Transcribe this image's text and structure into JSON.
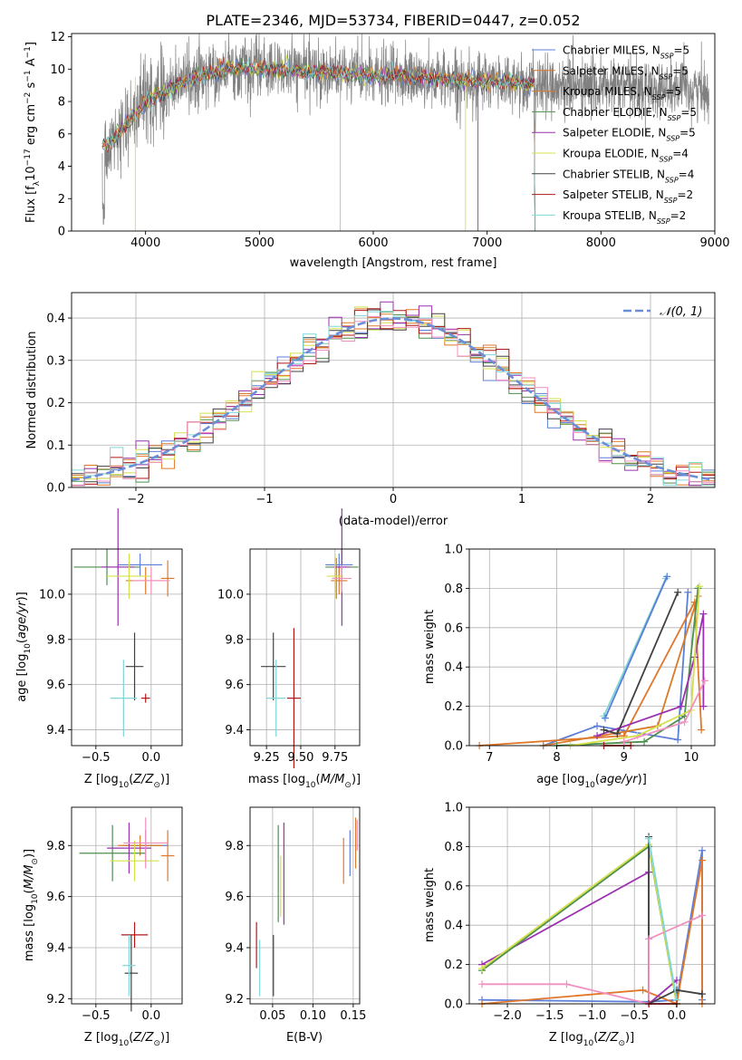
{
  "page_title": "PLATE=2346, MJD=53734, FIBERID=0447, z=0.052",
  "legend_models": [
    {
      "label": "Chabrier MILES, N",
      "sub": "SSP",
      "n": "5",
      "color": "#5b7fd8"
    },
    {
      "label": "Salpeter MILES, N",
      "sub": "SSP",
      "n": "5",
      "color": "#e0772a"
    },
    {
      "label": "Kroupa MILES, N",
      "sub": "SSP",
      "n": "5",
      "color": "#d97b28"
    },
    {
      "label": "Chabrier ELODIE, N",
      "sub": "SSP",
      "n": "5",
      "color": "#4d8f4d"
    },
    {
      "label": "Salpeter ELODIE, N",
      "sub": "SSP",
      "n": "5",
      "color": "#9b30b0"
    },
    {
      "label": "Kroupa ELODIE, N",
      "sub": "SSP",
      "n": "4",
      "color": "#d4e04a"
    },
    {
      "label": "Chabrier STELIB, N",
      "sub": "SSP",
      "n": "4",
      "color": "#404040"
    },
    {
      "label": "Salpeter STELIB, N",
      "sub": "SSP",
      "n": "2",
      "color": "#b01818"
    },
    {
      "label": "Kroupa STELIB, N",
      "sub": "SSP",
      "n": "2",
      "color": "#7fd6d6"
    }
  ],
  "chart_data": [
    {
      "id": "spectrum",
      "type": "line",
      "title": "PLATE=2346, MJD=53734, FIBERID=0447, z=0.052",
      "xlabel": "wavelength [Angstrom, rest frame]",
      "ylabel": "Flux [f_λ 10^-17 erg cm^-2 s^-1 A^-1]",
      "xlim": [
        3350,
        9000
      ],
      "ylim": [
        0,
        12.2
      ],
      "xticks": [
        4000,
        5000,
        6000,
        7000,
        8000,
        9000
      ],
      "yticks": [
        0,
        2,
        4,
        6,
        8,
        10,
        12
      ],
      "continuum": [
        [
          3620,
          5.2
        ],
        [
          3750,
          6.0
        ],
        [
          3900,
          7.2
        ],
        [
          4000,
          8.0
        ],
        [
          4200,
          8.7
        ],
        [
          4400,
          9.4
        ],
        [
          4600,
          9.8
        ],
        [
          4800,
          10.1
        ],
        [
          5000,
          10.0
        ],
        [
          5300,
          9.9
        ],
        [
          5600,
          9.8
        ],
        [
          6000,
          9.6
        ],
        [
          6400,
          9.5
        ],
        [
          6800,
          9.3
        ],
        [
          7200,
          9.2
        ],
        [
          7420,
          9.1
        ]
      ],
      "data_range": [
        3620,
        8950
      ],
      "models_range": [
        3620,
        7420
      ],
      "grid": false,
      "legend": "right"
    },
    {
      "id": "residuals",
      "type": "histogram",
      "xlabel": "(data-model)/error",
      "ylabel": "Normed distribution",
      "xlim": [
        -2.5,
        2.5
      ],
      "ylim": [
        0,
        0.46
      ],
      "xticks": [
        -2,
        -1,
        0,
        1,
        2
      ],
      "yticks": [
        0.0,
        0.1,
        0.2,
        0.3,
        0.4
      ],
      "legend_label": "𝒩(0, 1)",
      "reference": "normal(0,1)",
      "bin_width": 0.1,
      "grid": true
    },
    {
      "id": "age_vs_Z",
      "type": "errorbar",
      "xlabel": "Z [log10(Z/Z⊙)]",
      "ylabel": "age [log10(age/yr)]",
      "xlim": [
        -0.72,
        0.28
      ],
      "ylim": [
        9.33,
        10.2
      ],
      "xticks": [
        -0.5,
        0.0
      ],
      "yticks": [
        9.4,
        9.6,
        9.8,
        10.0
      ],
      "points": [
        {
          "x": -0.1,
          "y": 10.13,
          "xe": 0.2,
          "ye": 0.05,
          "c": "#5b7fd8"
        },
        {
          "x": -0.05,
          "y": 10.06,
          "xe": 0.18,
          "ye": 0.06,
          "c": "#e0772a"
        },
        {
          "x": 0.15,
          "y": 10.07,
          "xe": 0.06,
          "ye": 0.08,
          "c": "#d97b28"
        },
        {
          "x": -0.4,
          "y": 10.12,
          "xe": 0.3,
          "ye": 0.08,
          "c": "#4d8f4d"
        },
        {
          "x": -0.3,
          "y": 10.12,
          "xe": 0.15,
          "ye": 0.26,
          "c": "#9b30b0"
        },
        {
          "x": -0.2,
          "y": 10.08,
          "xe": 0.2,
          "ye": 0.1,
          "c": "#d4e04a"
        },
        {
          "x": -0.15,
          "y": 9.68,
          "xe": 0.08,
          "ye": 0.15,
          "c": "#404040"
        },
        {
          "x": -0.05,
          "y": 9.54,
          "xe": 0.04,
          "ye": 0.02,
          "c": "#b01818"
        },
        {
          "x": -0.25,
          "y": 9.54,
          "xe": 0.12,
          "ye": 0.17,
          "c": "#7fd6d6"
        },
        {
          "x": 0.0,
          "y": 10.06,
          "xe": 0.17,
          "ye": 0.06,
          "c": "#f090c0"
        }
      ],
      "grid": true
    },
    {
      "id": "age_vs_mass",
      "type": "errorbar",
      "xlabel": "mass [log10(M/M⊙)]",
      "ylabel": "",
      "xlim": [
        9.13,
        9.93
      ],
      "ylim": [
        9.33,
        10.2
      ],
      "xticks": [
        9.25,
        9.5,
        9.75
      ],
      "yticks": [
        9.4,
        9.6,
        9.8,
        10.0
      ],
      "points": [
        {
          "x": 9.78,
          "y": 10.13,
          "xe": 0.1,
          "ye": 0.05,
          "c": "#5b7fd8"
        },
        {
          "x": 9.78,
          "y": 10.06,
          "xe": 0.06,
          "ye": 0.06,
          "c": "#e0772a"
        },
        {
          "x": 9.76,
          "y": 10.07,
          "xe": 0.03,
          "ye": 0.09,
          "c": "#d97b28"
        },
        {
          "x": 9.8,
          "y": 10.12,
          "xe": 0.12,
          "ye": 0.08,
          "c": "#4d8f4d"
        },
        {
          "x": 9.8,
          "y": 10.12,
          "xe": 0.06,
          "ye": 0.26,
          "c": "#9b30b0"
        },
        {
          "x": 9.75,
          "y": 10.08,
          "xe": 0.06,
          "ye": 0.1,
          "c": "#d4e04a"
        },
        {
          "x": 9.3,
          "y": 9.68,
          "xe": 0.09,
          "ye": 0.15,
          "c": "#404040"
        },
        {
          "x": 9.45,
          "y": 9.54,
          "xe": 0.05,
          "ye": 0.31,
          "c": "#b01818"
        },
        {
          "x": 9.32,
          "y": 9.54,
          "xe": 0.07,
          "ye": 0.17,
          "c": "#7fd6d6"
        },
        {
          "x": 9.8,
          "y": 10.07,
          "xe": 0.07,
          "ye": 0.06,
          "c": "#f090c0"
        }
      ],
      "grid": true
    },
    {
      "id": "weight_vs_age",
      "type": "line",
      "xlabel": "age [log10(age/yr)]",
      "ylabel": "mass weight",
      "xlim": [
        6.7,
        10.35
      ],
      "ylim": [
        0,
        1
      ],
      "xticks": [
        7,
        8,
        9,
        10
      ],
      "yticks": [
        0.0,
        0.2,
        0.4,
        0.6,
        0.8,
        1.0
      ],
      "series": [
        {
          "c": "#5b7fd8",
          "x": [
            7.8,
            8.6,
            9.8,
            9.95
          ],
          "y": [
            0.0,
            0.1,
            0.03,
            0.78
          ]
        },
        {
          "c": "#e0772a",
          "x": [
            6.85,
            9.0,
            10.05,
            10.15
          ],
          "y": [
            0.0,
            0.05,
            0.73,
            0.08
          ]
        },
        {
          "c": "#d97b28",
          "x": [
            7.8,
            9.5,
            10.1
          ],
          "y": [
            0.0,
            0.1,
            0.76
          ]
        },
        {
          "c": "#4d8f4d",
          "x": [
            8.0,
            9.3,
            9.9,
            10.1
          ],
          "y": [
            0.0,
            0.02,
            0.15,
            0.8
          ]
        },
        {
          "c": "#9b30b0",
          "x": [
            8.6,
            9.85,
            10.05,
            10.18,
            10.18
          ],
          "y": [
            0.05,
            0.2,
            0.45,
            0.67,
            0.2
          ]
        },
        {
          "c": "#d4e04a",
          "x": [
            8.2,
            9.2,
            10.0,
            10.12
          ],
          "y": [
            0.0,
            0.05,
            0.18,
            0.81
          ]
        },
        {
          "c": "#404040",
          "x": [
            8.7,
            8.9,
            9.8
          ],
          "y": [
            0.08,
            0.06,
            0.78
          ]
        },
        {
          "c": "#b01818",
          "x": [
            8.7,
            9.1
          ],
          "y": [
            0.0,
            0.0
          ]
        },
        {
          "c": "#7fd6d6",
          "x": [
            8.7,
            9.62
          ],
          "y": [
            0.15,
            0.85
          ]
        },
        {
          "c": "#5b7fd8",
          "x": [
            8.72,
            9.64
          ],
          "y": [
            0.14,
            0.86
          ]
        },
        {
          "c": "#f090c0",
          "x": [
            9.0,
            9.9,
            10.2
          ],
          "y": [
            0.02,
            0.12,
            0.33
          ]
        }
      ],
      "grid": true
    },
    {
      "id": "mass_vs_Z",
      "type": "errorbar",
      "xlabel": "Z [log10(Z/Z⊙)]",
      "ylabel": "mass [log10(M/M⊙)]",
      "xlim": [
        -0.72,
        0.28
      ],
      "ylim": [
        9.18,
        9.95
      ],
      "xticks": [
        -0.5,
        0.0
      ],
      "yticks": [
        9.2,
        9.4,
        9.6,
        9.8
      ],
      "points": [
        {
          "x": -0.05,
          "y": 9.8,
          "xe": 0.2,
          "ye": 0.06,
          "c": "#5b7fd8"
        },
        {
          "x": 0.15,
          "y": 9.76,
          "xe": 0.06,
          "ye": 0.1,
          "c": "#e0772a"
        },
        {
          "x": -0.1,
          "y": 9.8,
          "xe": 0.2,
          "ye": 0.04,
          "c": "#d97b28"
        },
        {
          "x": -0.35,
          "y": 9.77,
          "xe": 0.3,
          "ye": 0.11,
          "c": "#4d8f4d"
        },
        {
          "x": -0.2,
          "y": 9.79,
          "xe": 0.2,
          "ye": 0.1,
          "c": "#9b30b0"
        },
        {
          "x": -0.15,
          "y": 9.74,
          "xe": 0.22,
          "ye": 0.08,
          "c": "#d4e04a"
        },
        {
          "x": -0.18,
          "y": 9.3,
          "xe": 0.06,
          "ye": 0.15,
          "c": "#404040"
        },
        {
          "x": -0.15,
          "y": 9.45,
          "xe": 0.12,
          "ye": 0.05,
          "c": "#b01818"
        },
        {
          "x": -0.2,
          "y": 9.33,
          "xe": 0.06,
          "ye": 0.12,
          "c": "#7fd6d6"
        },
        {
          "x": -0.05,
          "y": 9.81,
          "xe": 0.2,
          "ye": 0.1,
          "c": "#f090c0"
        }
      ],
      "grid": true
    },
    {
      "id": "mass_vs_ebv",
      "type": "errorbar",
      "xlabel": "E(B-V)",
      "ylabel": "",
      "xlim": [
        0.022,
        0.158
      ],
      "ylim": [
        9.18,
        9.95
      ],
      "xticks": [
        0.05,
        0.1,
        0.15
      ],
      "yticks": [
        9.2,
        9.4,
        9.6,
        9.8
      ],
      "points": [
        {
          "x": 0.146,
          "y": 9.77,
          "xe": 0.0,
          "ye": 0.09,
          "c": "#5b7fd8"
        },
        {
          "x": 0.138,
          "y": 9.74,
          "xe": 0.0,
          "ye": 0.09,
          "c": "#e0772a"
        },
        {
          "x": 0.153,
          "y": 9.81,
          "xe": 0.0,
          "ye": 0.1,
          "c": "#d97b28"
        },
        {
          "x": 0.057,
          "y": 9.69,
          "xe": 0.0,
          "ye": 0.19,
          "c": "#4d8f4d"
        },
        {
          "x": 0.064,
          "y": 9.69,
          "xe": 0.0,
          "ye": 0.2,
          "c": "#9b30b0"
        },
        {
          "x": 0.06,
          "y": 9.64,
          "xe": 0.0,
          "ye": 0.12,
          "c": "#d4e04a"
        },
        {
          "x": 0.051,
          "y": 9.33,
          "xe": 0.0,
          "ye": 0.12,
          "c": "#404040"
        },
        {
          "x": 0.03,
          "y": 9.41,
          "xe": 0.0,
          "ye": 0.09,
          "c": "#b01818"
        },
        {
          "x": 0.034,
          "y": 9.32,
          "xe": 0.0,
          "ye": 0.11,
          "c": "#7fd6d6"
        },
        {
          "x": 0.155,
          "y": 9.84,
          "xe": 0.0,
          "ye": 0.06,
          "c": "#f090c0"
        }
      ],
      "grid": true
    },
    {
      "id": "weight_vs_Z",
      "type": "line",
      "xlabel": "Z [log10(Z/Z⊙)]",
      "ylabel": "mass weight",
      "xlim": [
        -2.45,
        0.45
      ],
      "ylim": [
        0,
        1
      ],
      "xticks": [
        -2.0,
        -1.5,
        -1.0,
        -0.5,
        0.0
      ],
      "yticks": [
        0.0,
        0.2,
        0.4,
        0.6,
        0.8,
        1.0
      ],
      "series": [
        {
          "c": "#5b7fd8",
          "x": [
            -2.3,
            -0.33,
            0.0,
            0.3,
            0.3
          ],
          "y": [
            0.02,
            0.01,
            0.02,
            0.78,
            0.02
          ]
        },
        {
          "c": "#e0772a",
          "x": [
            -2.3,
            -0.4,
            0.0,
            0.3,
            0.3
          ],
          "y": [
            0.0,
            0.07,
            0.0,
            0.73,
            0.0
          ]
        },
        {
          "c": "#9b30b0",
          "x": [
            -2.3,
            -0.33,
            -0.33,
            0.0
          ],
          "y": [
            0.2,
            0.67,
            0.0,
            0.12
          ]
        },
        {
          "c": "#4d8f4d",
          "x": [
            -2.3,
            -0.33,
            0.0
          ],
          "y": [
            0.17,
            0.8,
            0.0
          ]
        },
        {
          "c": "#d4e04a",
          "x": [
            -2.3,
            -0.33,
            0.0
          ],
          "y": [
            0.18,
            0.81,
            0.0
          ]
        },
        {
          "c": "#404040",
          "x": [
            -0.33,
            -0.33,
            0.0,
            0.3
          ],
          "y": [
            0.85,
            0.0,
            0.07,
            0.05
          ]
        },
        {
          "c": "#f090c0",
          "x": [
            -2.3,
            -1.3,
            -0.33,
            -0.33,
            0.3
          ],
          "y": [
            0.1,
            0.1,
            0.0,
            0.33,
            0.45
          ]
        },
        {
          "c": "#7fd6d6",
          "x": [
            -0.33,
            0.0
          ],
          "y": [
            0.84,
            0.02
          ]
        },
        {
          "c": "#b01818",
          "x": [
            -0.33,
            0.0
          ],
          "y": [
            0.0,
            0.0
          ]
        }
      ],
      "grid": true
    }
  ]
}
